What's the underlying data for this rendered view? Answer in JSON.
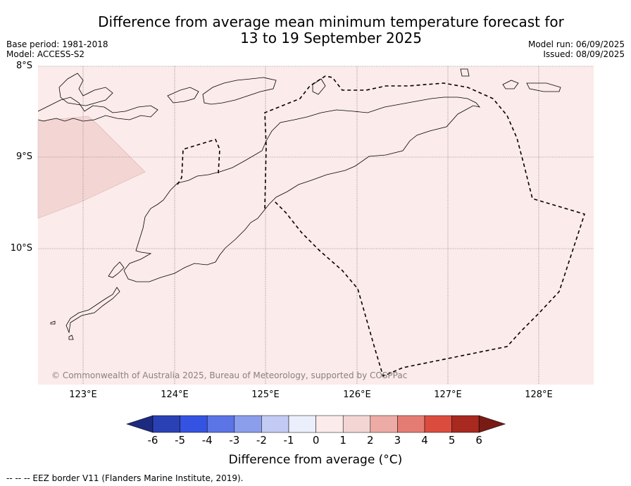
{
  "header": {
    "title_line1": "Difference from average mean minimum temperature forecast for",
    "title_line2": "13 to 19 September 2025",
    "base_period": "Base period: 1981-2018",
    "model": "Model: ACCESS-S2",
    "model_run": "Model run: 06/09/2025",
    "issued": "Issued: 08/09/2025"
  },
  "map": {
    "latitude_labels": [
      "8°S",
      "9°S",
      "10°S"
    ],
    "longitude_labels": [
      "123°E",
      "124°E",
      "125°E",
      "126°E",
      "127°E",
      "128°E"
    ],
    "background_anomaly_bin": "0 to 1",
    "background_color": "#fbebea",
    "patch_anomaly_bin": "1 to 2",
    "patch_color": "#f3d6d4",
    "copyright": "© Commonwealth of Australia 2025, Bureau of Meteorology, supported by COSPPac"
  },
  "colorbar": {
    "ticks": [
      "-6",
      "-5",
      "-4",
      "-3",
      "-2",
      "-1",
      "0",
      "1",
      "2",
      "3",
      "4",
      "5",
      "6"
    ],
    "colors": [
      "#1c2a80",
      "#2a41b6",
      "#3553e2",
      "#5b74e6",
      "#8b9eeb",
      "#c3cbf4",
      "#ebeefb",
      "#fbebea",
      "#f3d6d4",
      "#edaba6",
      "#e57c74",
      "#db4c3f",
      "#a8291f",
      "#7a1a14"
    ],
    "label": "Difference from average (°C)"
  },
  "footnote": "--  --  -- EEZ border V11 (Flanders Marine Institute, 2019)."
}
